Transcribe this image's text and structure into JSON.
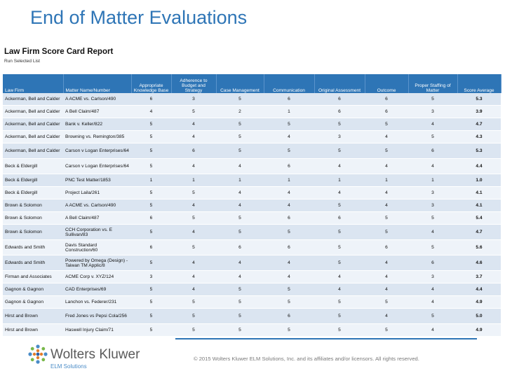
{
  "slide": {
    "title": "End of Matter Evaluations"
  },
  "report": {
    "title": "Law Firm Score Card Report",
    "subtitle": "Run Selected List",
    "columns": [
      "Law Firm",
      "Matter Name/Number",
      "Appropriate Knowledge Base",
      "Adherence to Budget and Strategy",
      "Case Management",
      "Communication",
      "Original Assessment",
      "Outcome",
      "Proper Staffing of Matter",
      "Score Average"
    ],
    "rows": [
      [
        "Ackerman, Bell and Calder",
        "A ACME vs. Carlson/490",
        "6",
        "3",
        "5",
        "6",
        "6",
        "6",
        "5",
        "5.3"
      ],
      [
        "Ackerman, Bell and Calder",
        "A Bell Claim/487",
        "4",
        "5",
        "2",
        "1",
        "6",
        "6",
        "3",
        "3.9"
      ],
      [
        "Ackerman, Bell and Calder",
        "Bank v. Keller/822",
        "5",
        "4",
        "5",
        "5",
        "5",
        "5",
        "4",
        "4.7"
      ],
      [
        "Ackerman, Bell and Calder",
        "Browning vs. Remington/385",
        "5",
        "4",
        "5",
        "4",
        "3",
        "4",
        "5",
        "4.3"
      ],
      [
        "Ackerman, Bell and Calder",
        "Carson v Logan Enterprises/64",
        "5",
        "6",
        "5",
        "5",
        "5",
        "5",
        "6",
        "5.3"
      ],
      [
        "Beck & Eldergill",
        "Carson v Logan Enterprises/64",
        "5",
        "4",
        "4",
        "6",
        "4",
        "4",
        "4",
        "4.4"
      ],
      [
        "Beck & Eldergill",
        "PNC Test Matter/1853",
        "1",
        "1",
        "1",
        "1",
        "1",
        "1",
        "1",
        "1.0"
      ],
      [
        "Beck & Eldergill",
        "Project Laila/261",
        "5",
        "5",
        "4",
        "4",
        "4",
        "4",
        "3",
        "4.1"
      ],
      [
        "Brown & Solomon",
        "A ACME vs. Carlson/490",
        "5",
        "4",
        "4",
        "4",
        "5",
        "4",
        "3",
        "4.1"
      ],
      [
        "Brown & Solomon",
        "A Bell Claim/487",
        "6",
        "5",
        "5",
        "6",
        "6",
        "5",
        "5",
        "5.4"
      ],
      [
        "Brown & Solomon",
        "CCH Corporation vs. E Sullivan/83",
        "5",
        "4",
        "5",
        "5",
        "5",
        "5",
        "4",
        "4.7"
      ],
      [
        "Edwards and Smith",
        "Davis Standard Construction/60",
        "6",
        "5",
        "6",
        "6",
        "5",
        "6",
        "5",
        "5.6"
      ],
      [
        "Edwards and Smith",
        "Powered by Omega (Design) - Taiwan TM Applic/8",
        "5",
        "4",
        "4",
        "4",
        "5",
        "4",
        "6",
        "4.6"
      ],
      [
        "Firman and Associates",
        "ACME Corp v. XYZ/124",
        "3",
        "4",
        "4",
        "4",
        "4",
        "4",
        "3",
        "3.7"
      ],
      [
        "Gagnon & Gagnon",
        "CAD Enterprises/69",
        "5",
        "4",
        "5",
        "5",
        "4",
        "4",
        "4",
        "4.4"
      ],
      [
        "Gagnon & Gagnon",
        "Lanchon vs. Federer/231",
        "5",
        "5",
        "5",
        "5",
        "5",
        "5",
        "4",
        "4.9"
      ],
      [
        "Hirst and Brown",
        "Fred Jones vs Pepsi Cola/256",
        "5",
        "5",
        "5",
        "6",
        "5",
        "4",
        "5",
        "5.0"
      ],
      [
        "Hirst and Brown",
        "Haswell Injury Claim/71",
        "5",
        "5",
        "5",
        "5",
        "5",
        "5",
        "4",
        "4.9"
      ]
    ]
  },
  "footer": {
    "brand_name": "Wolters Kluwer",
    "brand_sub": "ELM Solutions",
    "copyright": "© 2015 Wolters Kluwer ELM Solutions, Inc. and its affiliates and/or licensors. All rights reserved.",
    "accent_color": "#2e75b6"
  }
}
